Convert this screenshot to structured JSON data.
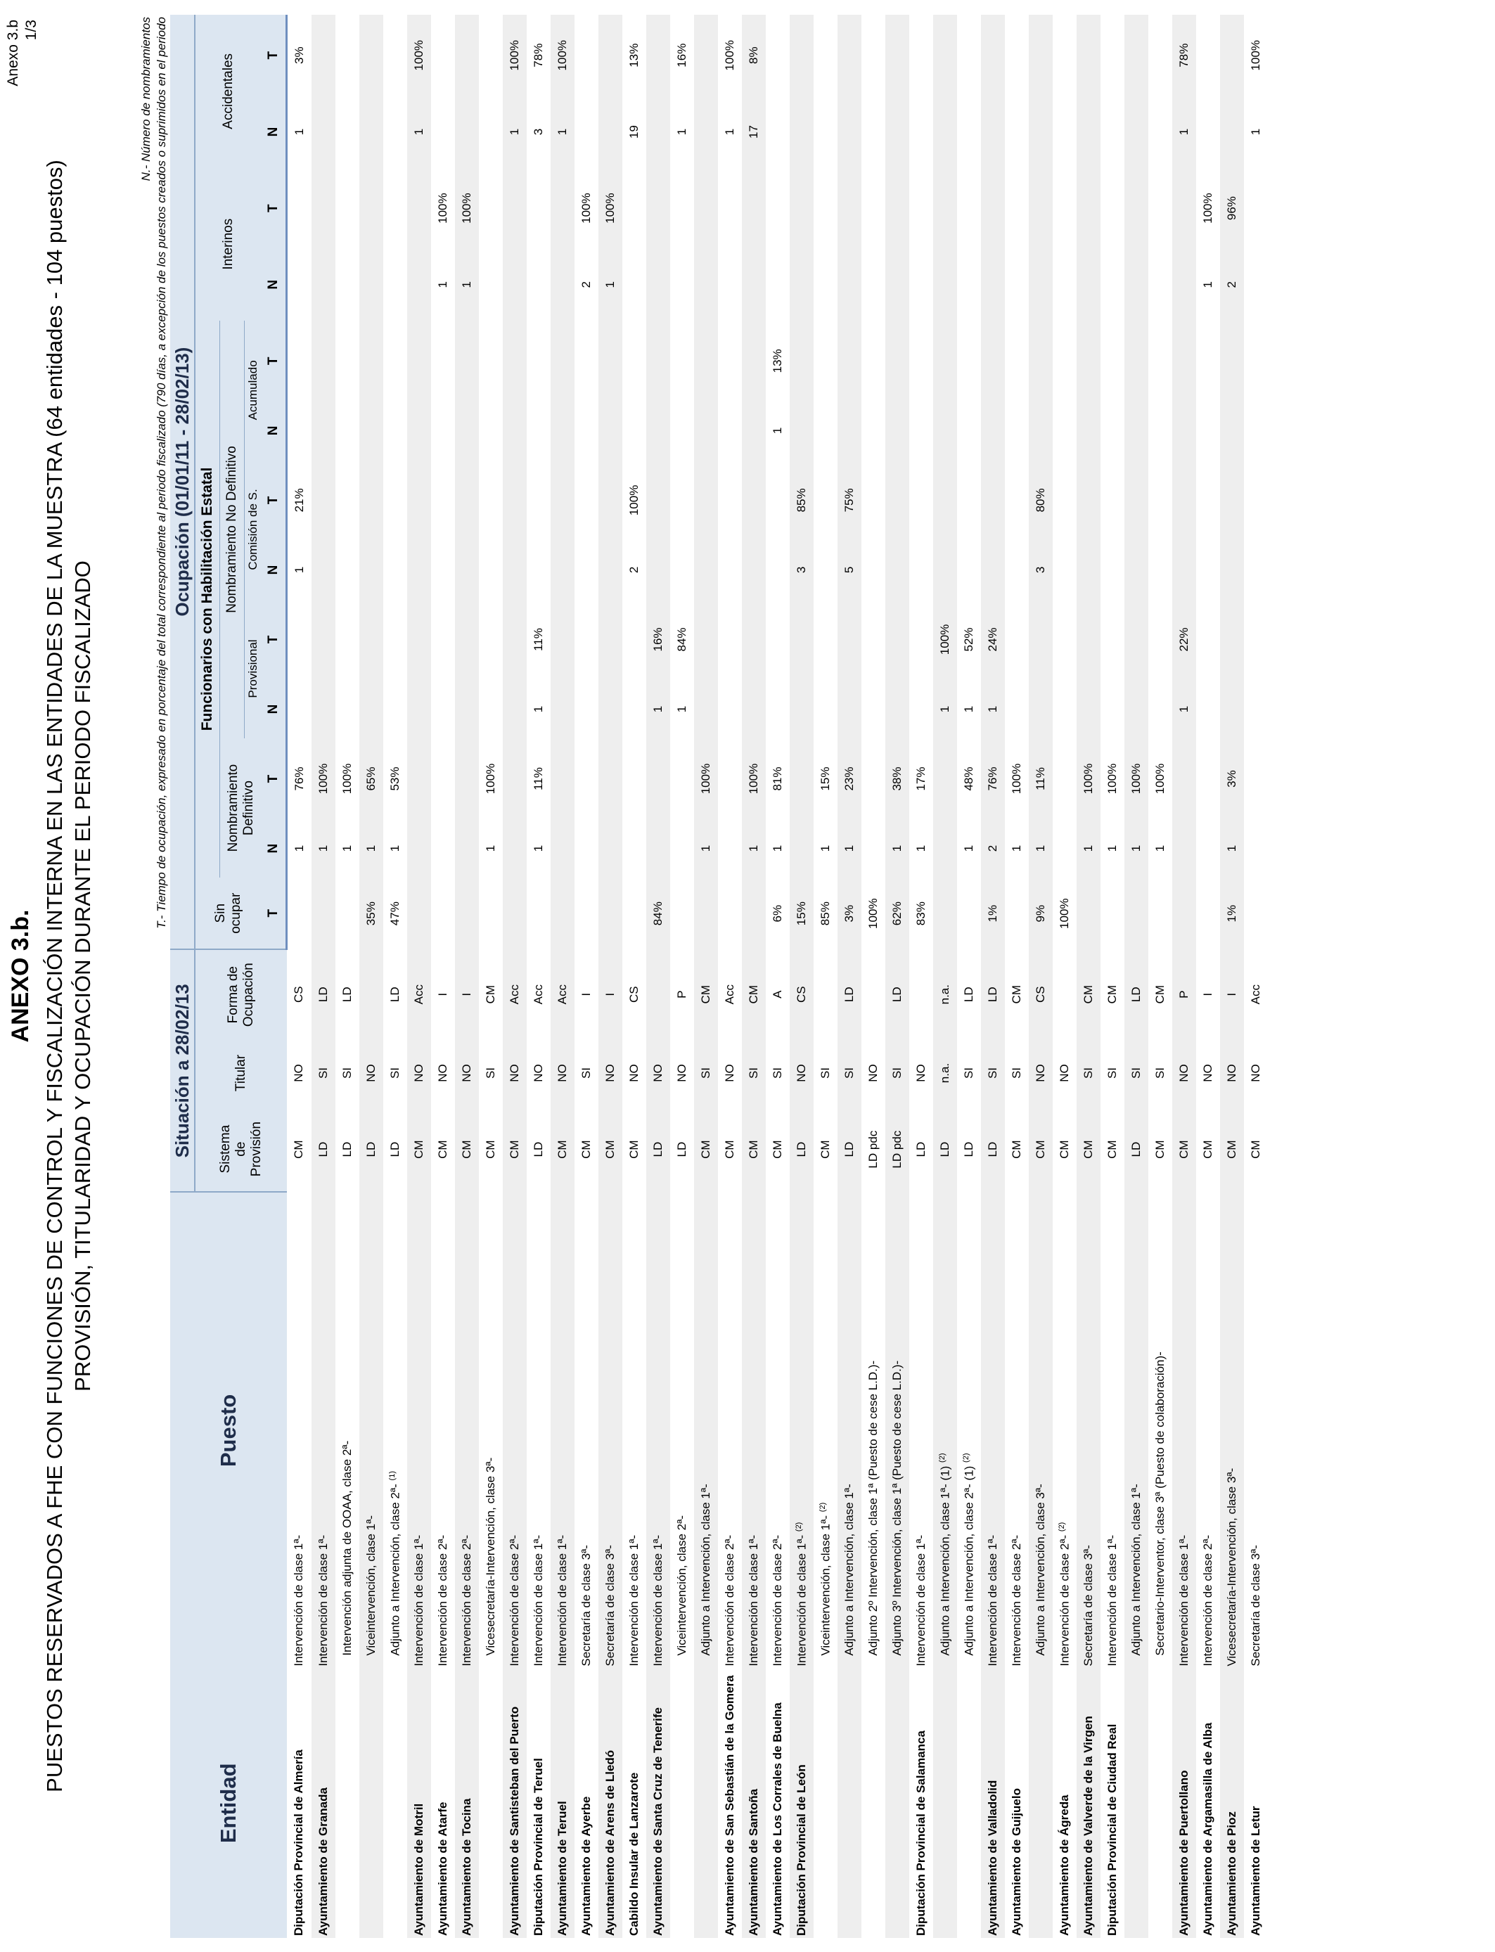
{
  "page_number": {
    "annex_ref": "Anexo 3.b",
    "page": "1/3"
  },
  "annex_title": "ANEXO 3.b.",
  "title_line1": "PUESTOS RESERVADOS A FHE CON FUNCIONES DE CONTROL Y FISCALIZACIÓN INTERNA EN LAS ENTIDADES DE LA MUESTRA (64 entidades - 104 puestos)",
  "title_line2": "PROVISIÓN, TITULARIDAD Y  OCUPACIÓN DURANTE EL PERIODO FISCALIZADO",
  "notes": {
    "n": "N.- Número de nombramientos",
    "t": "T.- Tiempo de ocupación, expresado en porcentaje del total correspondiente al periodo fiscalizado (790 días, a excepción de los puestos creados o suprimidos en el periodo"
  },
  "header": {
    "entidad": "Entidad",
    "puesto": "Puesto",
    "situacion": "Situación a 28/02/13",
    "ocupacion": "Ocupación  (01/01/11 - 28/02/13)",
    "sistema": [
      "Sistema",
      "de",
      "Provisión"
    ],
    "titular": "Titular",
    "forma": [
      "Forma de",
      "Ocupación"
    ],
    "sin_ocupar": [
      "Sin",
      "ocupar"
    ],
    "funcionarios": "Funcionarios con Habilitación Estatal",
    "nombramiento_def": [
      "Nombramiento",
      "Definitivo"
    ],
    "nombramiento_no_def": "Nombramiento No Definitivo",
    "provisional": "Provisional",
    "comision": "Comisión de S.",
    "acumulado": "Acumulado",
    "interinos": "Interinos",
    "accidentales": "Accidentales",
    "n": "N",
    "t": "T"
  },
  "rows": [
    {
      "ent": "Diputación Provincial de Almería",
      "p": "Intervención de clase 1ª-",
      "sup": "",
      "sis": "CM",
      "tit": "NO",
      "for": "CS",
      "sin": "",
      "dn": "1",
      "dt": "76%",
      "pn": "",
      "pt": "",
      "cn": "1",
      "ct": "21%",
      "an": "",
      "at": "",
      "in": "",
      "it": "",
      "xn": "1",
      "xt": "3%"
    },
    {
      "ent": "Ayuntamiento de Granada",
      "p": "Intervención de clase 1ª-",
      "sup": "",
      "sis": "LD",
      "tit": "SI",
      "for": "LD",
      "sin": "",
      "dn": "1",
      "dt": "100%",
      "pn": "",
      "pt": "",
      "cn": "",
      "ct": "",
      "an": "",
      "at": "",
      "in": "",
      "it": "",
      "xn": "",
      "xt": ""
    },
    {
      "ent": "",
      "p": "Intervención adjunta de OOAA, clase 2ª-",
      "sup": "",
      "sis": "LD",
      "tit": "SI",
      "for": "LD",
      "sin": "",
      "dn": "1",
      "dt": "100%",
      "pn": "",
      "pt": "",
      "cn": "",
      "ct": "",
      "an": "",
      "at": "",
      "in": "",
      "it": "",
      "xn": "",
      "xt": ""
    },
    {
      "ent": "",
      "p": "Viceintervención, clase 1ª-",
      "sup": "",
      "sis": "LD",
      "tit": "NO",
      "for": "",
      "sin": "35%",
      "dn": "1",
      "dt": "65%",
      "pn": "",
      "pt": "",
      "cn": "",
      "ct": "",
      "an": "",
      "at": "",
      "in": "",
      "it": "",
      "xn": "",
      "xt": ""
    },
    {
      "ent": "",
      "p": "Adjunto a Intervención, clase 2ª-",
      "sup": "(1)",
      "sis": "LD",
      "tit": "SI",
      "for": "LD",
      "sin": "47%",
      "dn": "1",
      "dt": "53%",
      "pn": "",
      "pt": "",
      "cn": "",
      "ct": "",
      "an": "",
      "at": "",
      "in": "",
      "it": "",
      "xn": "",
      "xt": ""
    },
    {
      "ent": "Ayuntamiento de Motril",
      "p": "Intervención de clase 1ª-",
      "sup": "",
      "sis": "CM",
      "tit": "NO",
      "for": "Acc",
      "sin": "",
      "dn": "",
      "dt": "",
      "pn": "",
      "pt": "",
      "cn": "",
      "ct": "",
      "an": "",
      "at": "",
      "in": "",
      "it": "",
      "xn": "1",
      "xt": "100%"
    },
    {
      "ent": "Ayuntamiento de Atarfe",
      "p": "Intervención de clase 2ª-",
      "sup": "",
      "sis": "CM",
      "tit": "NO",
      "for": "I",
      "sin": "",
      "dn": "",
      "dt": "",
      "pn": "",
      "pt": "",
      "cn": "",
      "ct": "",
      "an": "",
      "at": "",
      "in": "1",
      "it": "100%",
      "xn": "",
      "xt": ""
    },
    {
      "ent": "Ayuntamiento de Tocina",
      "p": "Intervención de clase 2ª-",
      "sup": "",
      "sis": "CM",
      "tit": "NO",
      "for": "I",
      "sin": "",
      "dn": "",
      "dt": "",
      "pn": "",
      "pt": "",
      "cn": "",
      "ct": "",
      "an": "",
      "at": "",
      "in": "1",
      "it": "100%",
      "xn": "",
      "xt": ""
    },
    {
      "ent": "",
      "p": "Vicesecretaría-Intervención, clase 3ª-",
      "sup": "",
      "sis": "CM",
      "tit": "SI",
      "for": "CM",
      "sin": "",
      "dn": "1",
      "dt": "100%",
      "pn": "",
      "pt": "",
      "cn": "",
      "ct": "",
      "an": "",
      "at": "",
      "in": "",
      "it": "",
      "xn": "",
      "xt": ""
    },
    {
      "ent": "Ayuntamiento de Santisteban del Puerto",
      "p": "Intervención de clase 2ª-",
      "sup": "",
      "sis": "CM",
      "tit": "NO",
      "for": "Acc",
      "sin": "",
      "dn": "",
      "dt": "",
      "pn": "",
      "pt": "",
      "cn": "",
      "ct": "",
      "an": "",
      "at": "",
      "in": "",
      "it": "",
      "xn": "1",
      "xt": "100%"
    },
    {
      "ent": "Diputación Provincial de Teruel",
      "p": "Intervención de clase 1ª-",
      "sup": "",
      "sis": "LD",
      "tit": "NO",
      "for": "Acc",
      "sin": "",
      "dn": "1",
      "dt": "11%",
      "pn": "1",
      "pt": "11%",
      "cn": "",
      "ct": "",
      "an": "",
      "at": "",
      "in": "",
      "it": "",
      "xn": "3",
      "xt": "78%"
    },
    {
      "ent": "Ayuntamiento de Teruel",
      "p": "Intervención de clase 1ª-",
      "sup": "",
      "sis": "CM",
      "tit": "NO",
      "for": "Acc",
      "sin": "",
      "dn": "",
      "dt": "",
      "pn": "",
      "pt": "",
      "cn": "",
      "ct": "",
      "an": "",
      "at": "",
      "in": "",
      "it": "",
      "xn": "1",
      "xt": "100%"
    },
    {
      "ent": "Ayuntamiento de Ayerbe",
      "p": "Secretaría de clase 3ª-",
      "sup": "",
      "sis": "CM",
      "tit": "SI",
      "for": "I",
      "sin": "",
      "dn": "",
      "dt": "",
      "pn": "",
      "pt": "",
      "cn": "",
      "ct": "",
      "an": "",
      "at": "",
      "in": "2",
      "it": "100%",
      "xn": "",
      "xt": ""
    },
    {
      "ent": "Ayuntamiento de Arens de Lledó",
      "p": "Secretaría de clase 3ª-",
      "sup": "",
      "sis": "CM",
      "tit": "NO",
      "for": "I",
      "sin": "",
      "dn": "",
      "dt": "",
      "pn": "",
      "pt": "",
      "cn": "",
      "ct": "",
      "an": "",
      "at": "",
      "in": "1",
      "it": "100%",
      "xn": "",
      "xt": ""
    },
    {
      "ent": "Cabildo Insular de Lanzarote",
      "p": "Intervención de clase 1ª-",
      "sup": "",
      "sis": "CM",
      "tit": "NO",
      "for": "CS",
      "sin": "",
      "dn": "",
      "dt": "",
      "pn": "",
      "pt": "",
      "cn": "2",
      "ct": "100%",
      "an": "",
      "at": "",
      "in": "",
      "it": "",
      "xn": "19",
      "xt": "13%"
    },
    {
      "ent": "Ayuntamiento de Santa Cruz de Tenerife",
      "p": "Intervención de clase 1ª-",
      "sup": "",
      "sis": "LD",
      "tit": "NO",
      "for": "",
      "sin": "84%",
      "dn": "",
      "dt": "",
      "pn": "1",
      "pt": "16%",
      "cn": "",
      "ct": "",
      "an": "",
      "at": "",
      "in": "",
      "it": "",
      "xn": "",
      "xt": ""
    },
    {
      "ent": "",
      "p": "Viceintervención, clase 2ª-",
      "sup": "",
      "sis": "LD",
      "tit": "NO",
      "for": "P",
      "sin": "",
      "dn": "",
      "dt": "",
      "pn": "1",
      "pt": "84%",
      "cn": "",
      "ct": "",
      "an": "",
      "at": "",
      "in": "",
      "it": "",
      "xn": "1",
      "xt": "16%"
    },
    {
      "ent": "",
      "p": "Adjunto a Intervención, clase 1ª-",
      "sup": "",
      "sis": "CM",
      "tit": "SI",
      "for": "CM",
      "sin": "",
      "dn": "1",
      "dt": "100%",
      "pn": "",
      "pt": "",
      "cn": "",
      "ct": "",
      "an": "",
      "at": "",
      "in": "",
      "it": "",
      "xn": "",
      "xt": ""
    },
    {
      "ent": "Ayuntamiento de San Sebastián de la Gomera",
      "p": "Intervención de clase 2ª-",
      "sup": "",
      "sis": "CM",
      "tit": "NO",
      "for": "Acc",
      "sin": "",
      "dn": "",
      "dt": "",
      "pn": "",
      "pt": "",
      "cn": "",
      "ct": "",
      "an": "",
      "at": "",
      "in": "",
      "it": "",
      "xn": "1",
      "xt": "100%"
    },
    {
      "ent": "Ayuntamiento de Santoña",
      "p": "Intervención de clase 1ª-",
      "sup": "",
      "sis": "CM",
      "tit": "SI",
      "for": "CM",
      "sin": "",
      "dn": "1",
      "dt": "100%",
      "pn": "",
      "pt": "",
      "cn": "",
      "ct": "",
      "an": "",
      "at": "",
      "in": "",
      "it": "",
      "xn": "17",
      "xt": "8%"
    },
    {
      "ent": "Ayuntamiento de Los Corrales de Buelna",
      "p": "Intervención de clase 2ª-",
      "sup": "",
      "sis": "CM",
      "tit": "SI",
      "for": "A",
      "sin": "6%",
      "dn": "1",
      "dt": "81%",
      "pn": "",
      "pt": "",
      "cn": "",
      "ct": "",
      "an": "1",
      "at": "13%",
      "in": "",
      "it": "",
      "xn": "",
      "xt": ""
    },
    {
      "ent": "Diputación Provincial de León",
      "p": "Intervención de clase 1ª-",
      "sup": "(2)",
      "sis": "LD",
      "tit": "NO",
      "for": "CS",
      "sin": "15%",
      "dn": "",
      "dt": "",
      "pn": "",
      "pt": "",
      "cn": "3",
      "ct": "85%",
      "an": "",
      "at": "",
      "in": "",
      "it": "",
      "xn": "",
      "xt": ""
    },
    {
      "ent": "",
      "p": "Viceintervención, clase 1ª-",
      "sup": "(2)",
      "sis": "CM",
      "tit": "SI",
      "for": "",
      "sin": "85%",
      "dn": "1",
      "dt": "15%",
      "pn": "",
      "pt": "",
      "cn": "",
      "ct": "",
      "an": "",
      "at": "",
      "in": "",
      "it": "",
      "xn": "",
      "xt": ""
    },
    {
      "ent": "",
      "p": "Adjunto a Intervención, clase 1ª-",
      "sup": "",
      "sis": "LD",
      "tit": "SI",
      "for": "LD",
      "sin": "3%",
      "dn": "1",
      "dt": "23%",
      "pn": "",
      "pt": "",
      "cn": "5",
      "ct": "75%",
      "an": "",
      "at": "",
      "in": "",
      "it": "",
      "xn": "",
      "xt": ""
    },
    {
      "ent": "",
      "p": "Adjunto 2º Intervención, clase 1ª (Puesto de cese L.D.)-",
      "sup": "",
      "sis": "LD pdc",
      "tit": "NO",
      "for": "",
      "sin": "100%",
      "dn": "",
      "dt": "",
      "pn": "",
      "pt": "",
      "cn": "",
      "ct": "",
      "an": "",
      "at": "",
      "in": "",
      "it": "",
      "xn": "",
      "xt": ""
    },
    {
      "ent": "",
      "p": "Adjunto 3º Intervención, clase 1ª (Puesto de cese L.D.)-",
      "sup": "",
      "sis": "LD pdc",
      "tit": "SI",
      "for": "LD",
      "sin": "62%",
      "dn": "1",
      "dt": "38%",
      "pn": "",
      "pt": "",
      "cn": "",
      "ct": "",
      "an": "",
      "at": "",
      "in": "",
      "it": "",
      "xn": "",
      "xt": ""
    },
    {
      "ent": "Diputación Provincial de Salamanca",
      "p": "Intervención de clase 1ª-",
      "sup": "",
      "sis": "LD",
      "tit": "NO",
      "for": "",
      "sin": "83%",
      "dn": "1",
      "dt": "17%",
      "pn": "",
      "pt": "",
      "cn": "",
      "ct": "",
      "an": "",
      "at": "",
      "in": "",
      "it": "",
      "xn": "",
      "xt": ""
    },
    {
      "ent": "",
      "p": "Adjunto a Intervención, clase 1ª- (1)",
      "sup": "(2)",
      "sis": "LD",
      "tit": "n.a.",
      "for": "n.a.",
      "sin": "",
      "dn": "",
      "dt": "",
      "pn": "1",
      "pt": "100%",
      "cn": "",
      "ct": "",
      "an": "",
      "at": "",
      "in": "",
      "it": "",
      "xn": "",
      "xt": ""
    },
    {
      "ent": "",
      "p": "Adjunto a Intervención, clase 2ª- (1)",
      "sup": "(2)",
      "sis": "LD",
      "tit": "SI",
      "for": "LD",
      "sin": "",
      "dn": "1",
      "dt": "48%",
      "pn": "1",
      "pt": "52%",
      "cn": "",
      "ct": "",
      "an": "",
      "at": "",
      "in": "",
      "it": "",
      "xn": "",
      "xt": ""
    },
    {
      "ent": "Ayuntamiento de Valladolid",
      "p": "Intervención de clase 1ª-",
      "sup": "",
      "sis": "LD",
      "tit": "SI",
      "for": "LD",
      "sin": "1%",
      "dn": "2",
      "dt": "76%",
      "pn": "1",
      "pt": "24%",
      "cn": "",
      "ct": "",
      "an": "",
      "at": "",
      "in": "",
      "it": "",
      "xn": "",
      "xt": ""
    },
    {
      "ent": "Ayuntamiento de Guijuelo",
      "p": "Intervención de clase 2ª-",
      "sup": "",
      "sis": "CM",
      "tit": "SI",
      "for": "CM",
      "sin": "",
      "dn": "1",
      "dt": "100%",
      "pn": "",
      "pt": "",
      "cn": "",
      "ct": "",
      "an": "",
      "at": "",
      "in": "",
      "it": "",
      "xn": "",
      "xt": ""
    },
    {
      "ent": "",
      "p": "Adjunto a Intervención, clase 3ª-",
      "sup": "",
      "sis": "CM",
      "tit": "NO",
      "for": "CS",
      "sin": "9%",
      "dn": "1",
      "dt": "11%",
      "pn": "",
      "pt": "",
      "cn": "3",
      "ct": "80%",
      "an": "",
      "at": "",
      "in": "",
      "it": "",
      "xn": "",
      "xt": ""
    },
    {
      "ent": "Ayuntamiento de Ágreda",
      "p": "Intervención de clase 2ª-",
      "sup": "(2)",
      "sis": "CM",
      "tit": "NO",
      "for": "",
      "sin": "100%",
      "dn": "",
      "dt": "",
      "pn": "",
      "pt": "",
      "cn": "",
      "ct": "",
      "an": "",
      "at": "",
      "in": "",
      "it": "",
      "xn": "",
      "xt": ""
    },
    {
      "ent": "Ayuntamiento de Valverde de la Virgen",
      "p": "Secretaría de clase 3ª-",
      "sup": "",
      "sis": "CM",
      "tit": "SI",
      "for": "CM",
      "sin": "",
      "dn": "1",
      "dt": "100%",
      "pn": "",
      "pt": "",
      "cn": "",
      "ct": "",
      "an": "",
      "at": "",
      "in": "",
      "it": "",
      "xn": "",
      "xt": ""
    },
    {
      "ent": "Diputación Provincial de Ciudad Real",
      "p": "Intervención de clase 1ª-",
      "sup": "",
      "sis": "CM",
      "tit": "SI",
      "for": "CM",
      "sin": "",
      "dn": "1",
      "dt": "100%",
      "pn": "",
      "pt": "",
      "cn": "",
      "ct": "",
      "an": "",
      "at": "",
      "in": "",
      "it": "",
      "xn": "",
      "xt": ""
    },
    {
      "ent": "",
      "p": "Adjunto a Intervención, clase 1ª-",
      "sup": "",
      "sis": "LD",
      "tit": "SI",
      "for": "LD",
      "sin": "",
      "dn": "1",
      "dt": "100%",
      "pn": "",
      "pt": "",
      "cn": "",
      "ct": "",
      "an": "",
      "at": "",
      "in": "",
      "it": "",
      "xn": "",
      "xt": ""
    },
    {
      "ent": "",
      "p": "Secretario-Interventor, clase 3ª (Puesto de colaboración)-",
      "sup": "",
      "sis": "CM",
      "tit": "SI",
      "for": "CM",
      "sin": "",
      "dn": "1",
      "dt": "100%",
      "pn": "",
      "pt": "",
      "cn": "",
      "ct": "",
      "an": "",
      "at": "",
      "in": "",
      "it": "",
      "xn": "",
      "xt": ""
    },
    {
      "ent": "Ayuntamiento de Puertollano",
      "p": "Intervención de clase 1ª-",
      "sup": "",
      "sis": "CM",
      "tit": "NO",
      "for": "P",
      "sin": "",
      "dn": "",
      "dt": "",
      "pn": "1",
      "pt": "22%",
      "cn": "",
      "ct": "",
      "an": "",
      "at": "",
      "in": "",
      "it": "",
      "xn": "1",
      "xt": "78%"
    },
    {
      "ent": "Ayuntamiento de Argamasilla de Alba",
      "p": "Intervención de clase 2ª-",
      "sup": "",
      "sis": "CM",
      "tit": "NO",
      "for": "I",
      "sin": "",
      "dn": "",
      "dt": "",
      "pn": "",
      "pt": "",
      "cn": "",
      "ct": "",
      "an": "",
      "at": "",
      "in": "1",
      "it": "100%",
      "xn": "",
      "xt": ""
    },
    {
      "ent": "Ayuntamiento de Pioz",
      "p": "Vicesecretaría-Intervención, clase 3ª-",
      "sup": "",
      "sis": "CM",
      "tit": "NO",
      "for": "I",
      "sin": "1%",
      "dn": "1",
      "dt": "3%",
      "pn": "",
      "pt": "",
      "cn": "",
      "ct": "",
      "an": "",
      "at": "",
      "in": "2",
      "it": "96%",
      "xn": "",
      "xt": ""
    },
    {
      "ent": "Ayuntamiento de Letur",
      "p": "Secretaría de clase 3ª-",
      "sup": "",
      "sis": "CM",
      "tit": "NO",
      "for": "Acc",
      "sin": "",
      "dn": "",
      "dt": "",
      "pn": "",
      "pt": "",
      "cn": "",
      "ct": "",
      "an": "",
      "at": "",
      "in": "",
      "it": "",
      "xn": "1",
      "xt": "100%"
    }
  ]
}
